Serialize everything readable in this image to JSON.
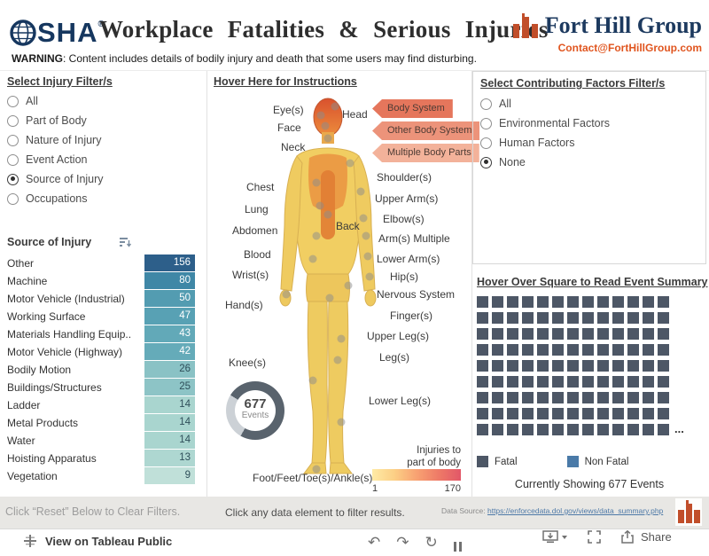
{
  "header": {
    "osha_rest": "SHA",
    "osha_registered": "®",
    "title": "Workplace Fatalities & Serious Injuries",
    "warning_bold": "WARNING",
    "warning_rest": ": Content includes details of bodily injury and death that some users may find disturbing.",
    "brand_name": "Fort Hill Group",
    "brand_contact": "Contact@FortHillGroup.com"
  },
  "injury_filter": {
    "title": "Select Injury Filter/s",
    "options": [
      {
        "label": "All",
        "selected": false
      },
      {
        "label": "Part of Body",
        "selected": false
      },
      {
        "label": "Nature of Injury",
        "selected": false
      },
      {
        "label": "Event Action",
        "selected": false
      },
      {
        "label": "Source of Injury",
        "selected": true
      },
      {
        "label": "Occupations",
        "selected": false
      }
    ]
  },
  "source_table": {
    "title": "Source of Injury",
    "rows": [
      {
        "label": "Other",
        "value": 156,
        "color": "#2d5f8a",
        "text": "#ffffff"
      },
      {
        "label": "Machine",
        "value": 80,
        "color": "#3f87a6",
        "text": "#ffffff"
      },
      {
        "label": "Motor Vehicle (Industrial)",
        "value": 50,
        "color": "#539cb1",
        "text": "#ffffff"
      },
      {
        "label": "Working Surface",
        "value": 47,
        "color": "#58a1b4",
        "text": "#ffffff"
      },
      {
        "label": "Materials Handling Equip..",
        "value": 43,
        "color": "#62a9b8",
        "text": "#ffffff"
      },
      {
        "label": "Motor Vehicle (Highway)",
        "value": 42,
        "color": "#65abb9",
        "text": "#ffffff"
      },
      {
        "label": "Bodily Motion",
        "value": 26,
        "color": "#8ac2c5",
        "text": "#2f4f5a"
      },
      {
        "label": "Buildings/Structures",
        "value": 25,
        "color": "#8dc4c6",
        "text": "#2f4f5a"
      },
      {
        "label": "Ladder",
        "value": 14,
        "color": "#a9d5cf",
        "text": "#2f4f5a"
      },
      {
        "label": "Metal Products",
        "value": 14,
        "color": "#a9d5cf",
        "text": "#2f4f5a"
      },
      {
        "label": "Water",
        "value": 14,
        "color": "#a9d5cf",
        "text": "#2f4f5a"
      },
      {
        "label": "Hoisting Apparatus",
        "value": 13,
        "color": "#aed7d1",
        "text": "#2f4f5a"
      },
      {
        "label": "Vegetation",
        "value": 9,
        "color": "#c0e0d9",
        "text": "#2f4f5a"
      }
    ]
  },
  "body_map": {
    "title": "Hover Here for Instructions",
    "labels": [
      "Eye(s)",
      "Face",
      "Neck",
      "Head",
      "Chest",
      "Lung",
      "Abdomen",
      "Back",
      "Blood",
      "Wrist(s)",
      "Hand(s)",
      "Knee(s)",
      "Shoulder(s)",
      "Upper Arm(s)",
      "Elbow(s)",
      "Arm(s) Multiple",
      "Lower Arm(s)",
      "Hip(s)",
      "Nervous System",
      "Finger(s)",
      "Upper Leg(s)",
      "Leg(s)",
      "Lower Leg(s)",
      "Foot/Feet/Toe(s)/Ankle(s)"
    ],
    "callouts": [
      {
        "label": "Body System",
        "color": "#e5765c"
      },
      {
        "label": "Other Body System",
        "color": "#ec937a"
      },
      {
        "label": "Multiple Body Parts",
        "color": "#f3b29a"
      }
    ],
    "donut": {
      "value": "677",
      "unit": "Events"
    },
    "scale": {
      "title_line1": "Injuries to",
      "title_line2": "part of body",
      "min": "1",
      "max": "170"
    }
  },
  "factors_filter": {
    "title": "Select Contributing Factors Filter/s",
    "options": [
      {
        "label": "All",
        "selected": false
      },
      {
        "label": "Environmental Factors",
        "selected": false
      },
      {
        "label": "Human Factors",
        "selected": false
      },
      {
        "label": "None",
        "selected": true
      }
    ]
  },
  "event_grid": {
    "title": "Hover Over Square to Read Event Summary",
    "columns": 13,
    "rows": 9,
    "square_color": "#4d5766",
    "ellipsis": "...",
    "legend": [
      {
        "label": "Fatal",
        "color": "#4d5766"
      },
      {
        "label": "Non Fatal",
        "color": "#4a7aa8"
      }
    ],
    "status": "Currently Showing 677 Events"
  },
  "footer": {
    "reset_hint": "Click “Reset” Below to Clear Filters.",
    "filter_hint": "Click any data element to filter results.",
    "source_label": "Data Source: ",
    "source_link": "https://enforcedata.dol.gov/views/data_summary.php"
  },
  "toolbar": {
    "view_label": "View on Tableau Public",
    "share_label": "Share"
  }
}
